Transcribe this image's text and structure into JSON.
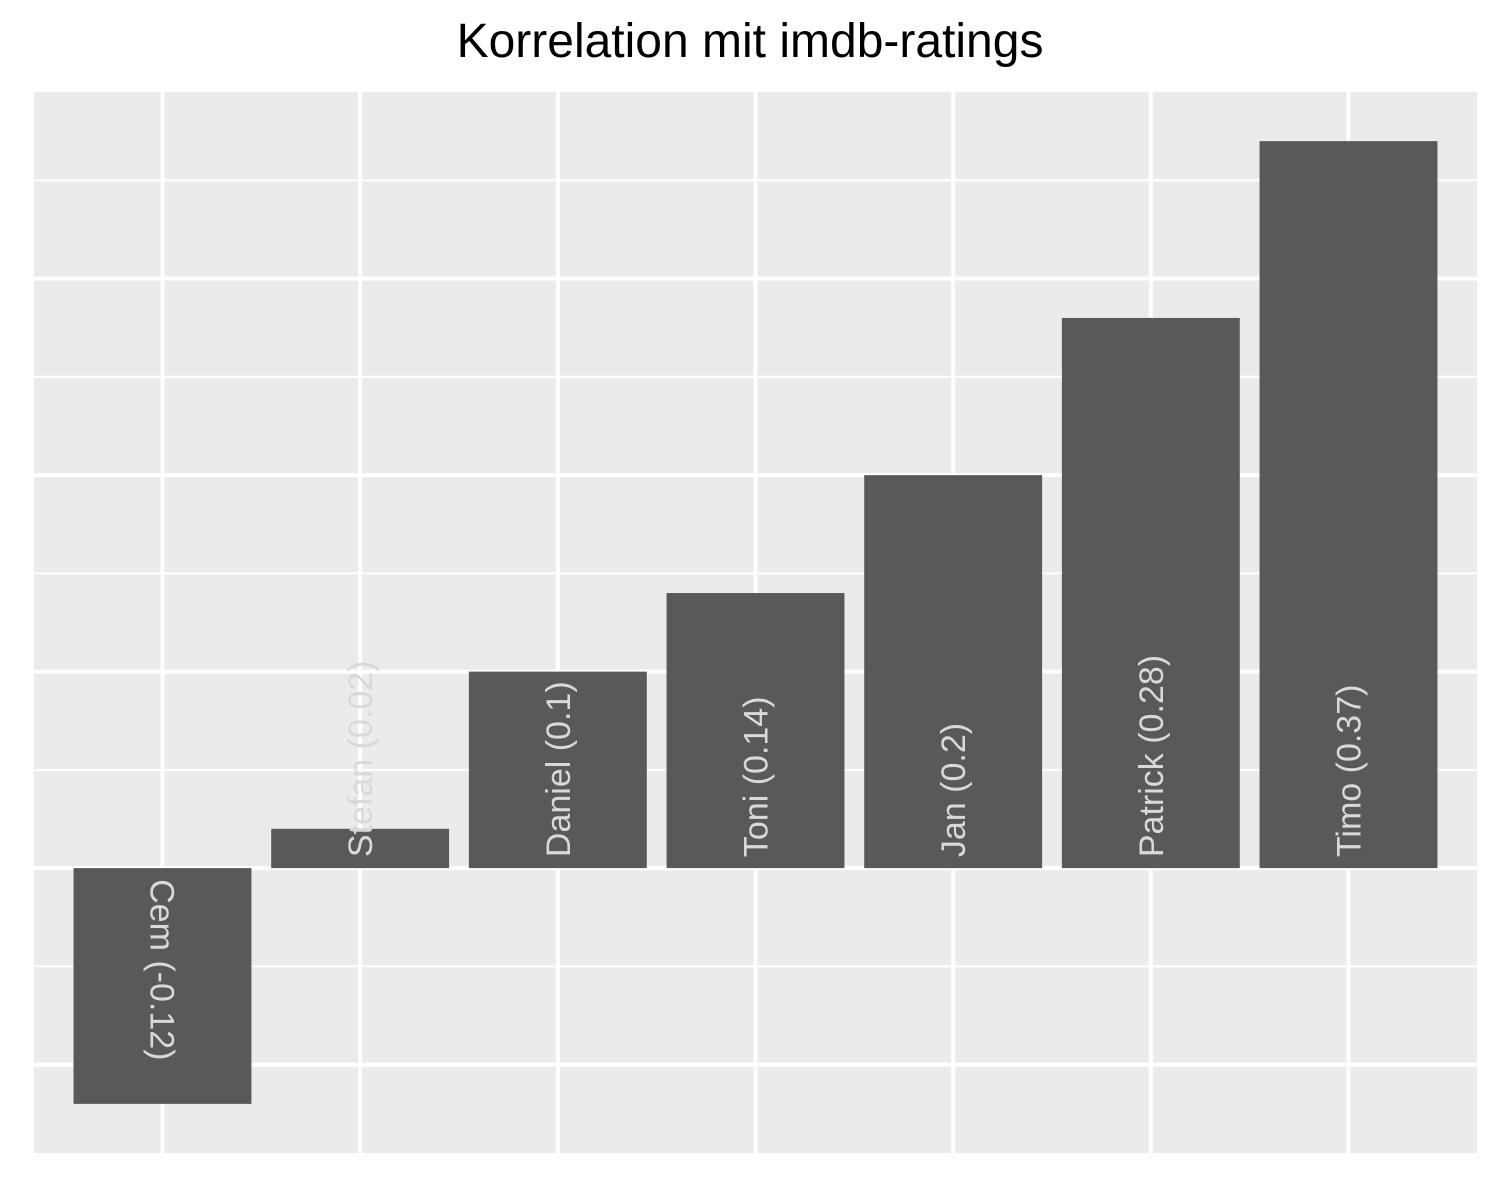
{
  "chart_data": {
    "type": "bar",
    "title": "Korrelation mit imdb-ratings",
    "categories": [
      "Cem",
      "Stefan",
      "Daniel",
      "Toni",
      "Jan",
      "Patrick",
      "Timo"
    ],
    "values": [
      -0.12,
      0.02,
      0.1,
      0.14,
      0.2,
      0.28,
      0.37
    ],
    "labels": [
      "Cem (-0.12)",
      "Stefan (0.02)",
      "Daniel (0.1)",
      "Toni (0.14)",
      "Jan (0.2)",
      "Patrick (0.28)",
      "Timo (0.37)"
    ],
    "xlabel": "",
    "ylabel": "",
    "ylim": [
      -0.145,
      0.395
    ],
    "y_major_breaks": [
      -0.1,
      0.0,
      0.1,
      0.2,
      0.3
    ],
    "y_minor_breaks": [
      -0.15,
      -0.05,
      0.05,
      0.15,
      0.25,
      0.35
    ],
    "grid": true,
    "legend": "none",
    "colors": {
      "panel": "#EBEBEB",
      "grid": "#FFFFFF",
      "bar": "#595959",
      "label": "#D9D9D9"
    }
  }
}
